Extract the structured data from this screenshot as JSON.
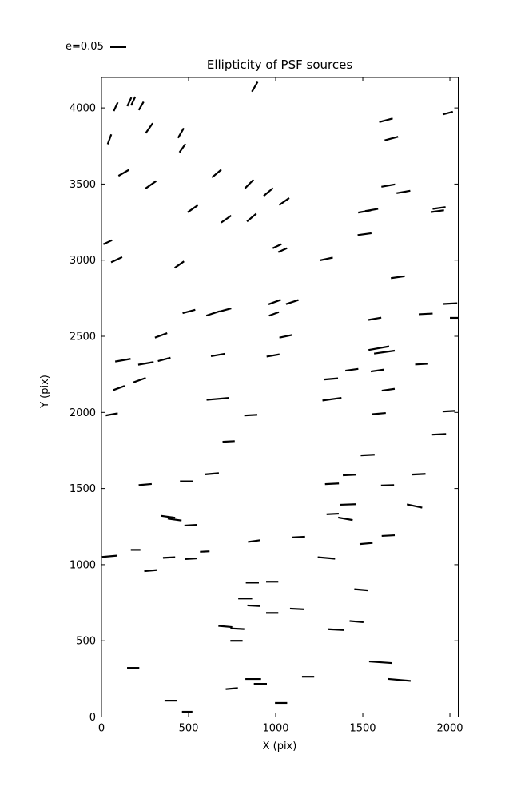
{
  "chart_data": {
    "type": "scatter",
    "subtype": "ellipticity-segment-field (quiver of headless sticks)",
    "title": "Ellipticity of PSF sources",
    "xlabel": "X (pix)",
    "ylabel": "Y (pix)",
    "xlim": [
      0,
      2048
    ],
    "ylim": [
      0,
      4200
    ],
    "xticks": [
      0,
      500,
      1000,
      1500,
      2000
    ],
    "yticks": [
      0,
      500,
      1000,
      1500,
      2000,
      2500,
      3000,
      3500,
      4000
    ],
    "grid": false,
    "legend_position": "above-axes top-left",
    "legend": {
      "label": "e=0.05",
      "ref_length_units": 91
    },
    "line_color": "#000000",
    "segments_format": [
      "x_pix",
      "y_pix",
      "angle_deg_ccw",
      "length_units"
    ],
    "segments": [
      [
        82,
        4008,
        65,
        55
      ],
      [
        160,
        4040,
        65,
        55
      ],
      [
        182,
        4045,
        65,
        55
      ],
      [
        228,
        4013,
        60,
        55
      ],
      [
        274,
        3867,
        55,
        70
      ],
      [
        46,
        3794,
        70,
        60
      ],
      [
        456,
        3835,
        60,
        65
      ],
      [
        465,
        3736,
        55,
        60
      ],
      [
        128,
        3574,
        30,
        70
      ],
      [
        283,
        3495,
        35,
        75
      ],
      [
        661,
        3569,
        40,
        70
      ],
      [
        524,
        3338,
        35,
        70
      ],
      [
        880,
        4139,
        60,
        65
      ],
      [
        848,
        3500,
        45,
        70
      ],
      [
        958,
        3448,
        40,
        70
      ],
      [
        1049,
        3385,
        35,
        70
      ],
      [
        716,
        3270,
        35,
        70
      ],
      [
        862,
        3280,
        40,
        70
      ],
      [
        1633,
        3919,
        15,
        80
      ],
      [
        1988,
        3966,
        15,
        60
      ],
      [
        1664,
        3799,
        15,
        80
      ],
      [
        1646,
        3490,
        10,
        80
      ],
      [
        1733,
        3448,
        10,
        80
      ],
      [
        1510,
        3320,
        10,
        75
      ],
      [
        1551,
        3330,
        10,
        75
      ],
      [
        1938,
        3343,
        8,
        75
      ],
      [
        1929,
        3322,
        8,
        75
      ],
      [
        1510,
        3171,
        8,
        80
      ],
      [
        36,
        3118,
        25,
        55
      ],
      [
        87,
        3003,
        25,
        70
      ],
      [
        447,
        2971,
        35,
        65
      ],
      [
        502,
        2663,
        15,
        75
      ],
      [
        640,
        2650,
        18,
        80
      ],
      [
        342,
        2506,
        20,
        75
      ],
      [
        123,
        2343,
        10,
        90
      ],
      [
        255,
        2322,
        10,
        90
      ],
      [
        360,
        2348,
        15,
        75
      ],
      [
        219,
        2212,
        20,
        75
      ],
      [
        100,
        2160,
        20,
        70
      ],
      [
        1008,
        3092,
        25,
        55
      ],
      [
        1040,
        3066,
        25,
        55
      ],
      [
        1291,
        3008,
        12,
        75
      ],
      [
        994,
        2725,
        20,
        75
      ],
      [
        1095,
        2725,
        18,
        75
      ],
      [
        990,
        2647,
        20,
        60
      ],
      [
        711,
        2673,
        15,
        70
      ],
      [
        1058,
        2500,
        12,
        75
      ],
      [
        985,
        2374,
        10,
        75
      ],
      [
        668,
        2377,
        10,
        80
      ],
      [
        668,
        2089,
        5,
        130
      ],
      [
        1323,
        2087,
        8,
        110
      ],
      [
        1701,
        2888,
        8,
        80
      ],
      [
        2002,
        2715,
        3,
        80
      ],
      [
        2025,
        2621,
        0,
        50
      ],
      [
        1861,
        2647,
        3,
        80
      ],
      [
        1569,
        2615,
        10,
        75
      ],
      [
        1592,
        2422,
        10,
        120
      ],
      [
        1624,
        2396,
        8,
        120
      ],
      [
        1838,
        2317,
        3,
        75
      ],
      [
        1437,
        2280,
        8,
        75
      ],
      [
        1583,
        2275,
        8,
        75
      ],
      [
        1318,
        2220,
        5,
        80
      ],
      [
        1646,
        2149,
        8,
        75
      ],
      [
        59,
        1987,
        10,
        70
      ],
      [
        251,
        1526,
        5,
        75
      ],
      [
        488,
        1547,
        0,
        75
      ],
      [
        634,
        1597,
        5,
        80
      ],
      [
        383,
        1314,
        -8,
        80
      ],
      [
        420,
        1296,
        -8,
        80
      ],
      [
        511,
        1259,
        3,
        70
      ],
      [
        196,
        1097,
        0,
        55
      ],
      [
        46,
        1055,
        5,
        85
      ],
      [
        388,
        1047,
        3,
        70
      ],
      [
        515,
        1039,
        3,
        70
      ],
      [
        593,
        1086,
        3,
        55
      ],
      [
        857,
        1982,
        3,
        75
      ],
      [
        730,
        1809,
        3,
        70
      ],
      [
        1323,
        1531,
        3,
        80
      ],
      [
        1327,
        1333,
        3,
        70
      ],
      [
        1400,
        1301,
        -10,
        85
      ],
      [
        1131,
        1181,
        3,
        75
      ],
      [
        876,
        1155,
        8,
        70
      ],
      [
        1592,
        1992,
        5,
        80
      ],
      [
        1993,
        2008,
        3,
        70
      ],
      [
        1938,
        1856,
        3,
        80
      ],
      [
        1528,
        1720,
        3,
        80
      ],
      [
        1423,
        1589,
        3,
        75
      ],
      [
        1820,
        1594,
        3,
        80
      ],
      [
        1642,
        1521,
        2,
        75
      ],
      [
        1414,
        1395,
        2,
        90
      ],
      [
        1797,
        1385,
        -12,
        90
      ],
      [
        1646,
        1191,
        3,
        75
      ],
      [
        1519,
        1139,
        5,
        75
      ],
      [
        283,
        961,
        5,
        75
      ],
      [
        182,
        322,
        0,
        70
      ],
      [
        397,
        107,
        0,
        70
      ],
      [
        492,
        34,
        0,
        60
      ],
      [
        1291,
        1044,
        -5,
        100
      ],
      [
        866,
        882,
        0,
        75
      ],
      [
        980,
        888,
        0,
        70
      ],
      [
        825,
        778,
        0,
        80
      ],
      [
        875,
        730,
        -3,
        75
      ],
      [
        980,
        683,
        0,
        70
      ],
      [
        1122,
        709,
        -3,
        80
      ],
      [
        711,
        594,
        -5,
        80
      ],
      [
        780,
        579,
        -3,
        80
      ],
      [
        775,
        500,
        0,
        70
      ],
      [
        871,
        249,
        0,
        90
      ],
      [
        912,
        217,
        0,
        75
      ],
      [
        748,
        186,
        5,
        70
      ],
      [
        1031,
        92,
        0,
        70
      ],
      [
        1186,
        264,
        0,
        70
      ],
      [
        1491,
        835,
        -5,
        80
      ],
      [
        1464,
        626,
        -5,
        80
      ],
      [
        1346,
        573,
        -3,
        90
      ],
      [
        1601,
        359,
        -4,
        130
      ],
      [
        1710,
        243,
        -5,
        130
      ]
    ]
  }
}
